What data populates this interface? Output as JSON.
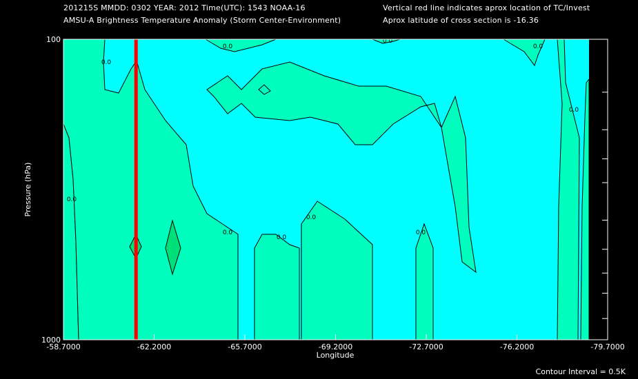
{
  "header": {
    "line1": "201215S  MMDD: 0302 YEAR: 2012 Time(UTC): 1543 NOAA-16",
    "line2": "AMSU-A Brightness Temperature Anomaly (Storm Center-Environment)",
    "line3": "Vertical red line indicates aprox location of TC/Invest",
    "line4": "Aprox latitude of cross section is -16.36"
  },
  "footer": "Contour Interval = 0.5K",
  "colors": {
    "background": "#000000",
    "cyan_region": "#00ffff",
    "green_region": "#00ffbf",
    "inner_green": "#00e07a",
    "contour_line": "#000000",
    "storm_line": "#ff0000"
  },
  "chart_data": {
    "type": "heatmap",
    "subtype": "contour",
    "xlabel": "Longitude",
    "ylabel": "Pressure (hPa)",
    "xlim": [
      -58.7,
      -79.7
    ],
    "ylim": [
      1000,
      100
    ],
    "y_scale": "log",
    "x_ticks": [
      "-58.7000",
      "-62.2000",
      "-65.7000",
      "-69.2000",
      "-72.7000",
      "-76.2000",
      "-79.7000"
    ],
    "x_tick_values": [
      -58.7,
      -62.2,
      -65.7,
      -69.2,
      -72.7,
      -76.2,
      -79.7
    ],
    "y_ticks": [
      "100",
      "1000"
    ],
    "y_tick_values": [
      100,
      1000
    ],
    "y_minor_ticks": [
      150,
      200,
      250,
      300,
      400,
      500,
      600,
      700,
      850
    ],
    "storm_longitude": -61.5,
    "contour_interval_K": 0.5,
    "contour_level_labels": [
      "0.0",
      "0.0",
      "0.0",
      "0.0",
      "0.0",
      "0.0",
      "0.0",
      "0.0",
      "0.0",
      "0.0"
    ],
    "regions": [
      {
        "name": "anomaly < 0 (cyan)",
        "color": "#00ffff"
      },
      {
        "name": "anomaly >= 0 (green)",
        "color": "#00ffbf"
      },
      {
        "name": "anomaly >= 0.5 (darker green)",
        "color": "#00e07a"
      }
    ]
  }
}
